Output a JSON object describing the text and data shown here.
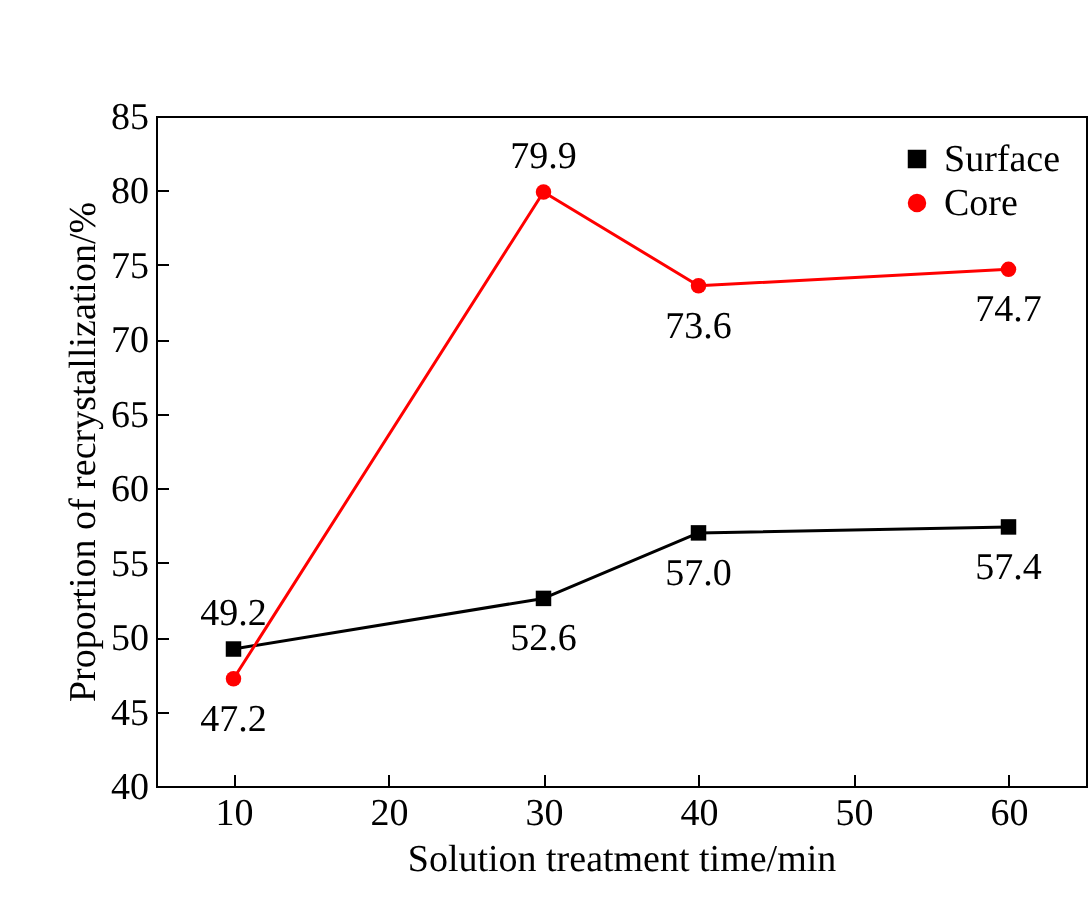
{
  "chart_data": {
    "type": "line",
    "xlabel": "Solution treatment time/min",
    "ylabel": "Proportion of recrystallization/%",
    "x": [
      10,
      30,
      40,
      60
    ],
    "xlim": [
      5,
      65
    ],
    "xticks": [
      10,
      20,
      30,
      40,
      50,
      60
    ],
    "ylim": [
      40,
      85
    ],
    "yticks": [
      40,
      45,
      50,
      55,
      60,
      65,
      70,
      75,
      80,
      85
    ],
    "grid": false,
    "legend": "top right",
    "series": [
      {
        "name": "Surface",
        "color": "#000000",
        "marker": "square",
        "values": [
          49.2,
          52.6,
          57.0,
          57.4
        ],
        "value_labels": [
          "49.2",
          "52.6",
          "57.0",
          "57.4"
        ]
      },
      {
        "name": "Core",
        "color": "#ff0000",
        "marker": "circle",
        "values": [
          47.2,
          79.9,
          73.6,
          74.7
        ],
        "value_labels": [
          "47.2",
          "79.9",
          "73.6",
          "74.7"
        ]
      }
    ]
  }
}
